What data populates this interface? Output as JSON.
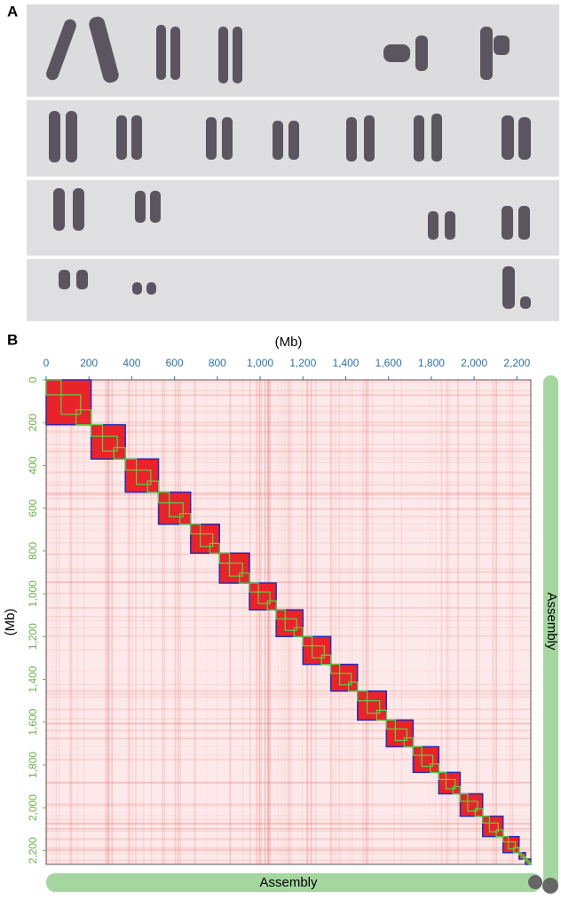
{
  "panels": {
    "a": {
      "label": "A"
    }
  },
  "chart_data": {
    "type": "contact-map",
    "label": "B",
    "x_title": "(Mb)",
    "y_title": "(Mb)",
    "x_assembly": "Assembly",
    "y_assembly": "Assembly",
    "xlim": [
      0,
      2265
    ],
    "ylim": [
      0,
      2265
    ],
    "xticks": [
      0,
      200,
      400,
      600,
      800,
      {
        "value": 1000,
        "label": "1,000"
      },
      {
        "value": 1200,
        "label": "1,200"
      },
      {
        "value": 1400,
        "label": "1,400"
      },
      {
        "value": 1600,
        "label": "1,600"
      },
      {
        "value": 1800,
        "label": "1,800"
      },
      {
        "value": 2000,
        "label": "2,000"
      },
      {
        "value": 2200,
        "label": "2,200"
      }
    ],
    "yticks": [
      0,
      200,
      400,
      600,
      800,
      {
        "value": 1000,
        "label": "1,000"
      },
      {
        "value": 1200,
        "label": "1,200"
      },
      {
        "value": 1400,
        "label": "1,400"
      },
      {
        "value": 1600,
        "label": "1,600"
      },
      {
        "value": 1800,
        "label": "1,800"
      },
      {
        "value": 2000,
        "label": "2,000"
      },
      {
        "value": 2200,
        "label": "2,200"
      }
    ],
    "blocks": [
      {
        "start": 0,
        "end": 210
      },
      {
        "start": 210,
        "end": 370
      },
      {
        "start": 370,
        "end": 525
      },
      {
        "start": 525,
        "end": 675
      },
      {
        "start": 675,
        "end": 810
      },
      {
        "start": 810,
        "end": 950
      },
      {
        "start": 950,
        "end": 1075
      },
      {
        "start": 1075,
        "end": 1200
      },
      {
        "start": 1200,
        "end": 1330
      },
      {
        "start": 1330,
        "end": 1455
      },
      {
        "start": 1455,
        "end": 1590
      },
      {
        "start": 1590,
        "end": 1715
      },
      {
        "start": 1715,
        "end": 1835
      },
      {
        "start": 1835,
        "end": 1935
      },
      {
        "start": 1935,
        "end": 2040
      },
      {
        "start": 2040,
        "end": 2135
      },
      {
        "start": 2135,
        "end": 2210
      },
      {
        "start": 2210,
        "end": 2240
      },
      {
        "start": 2240,
        "end": 2265
      }
    ]
  }
}
